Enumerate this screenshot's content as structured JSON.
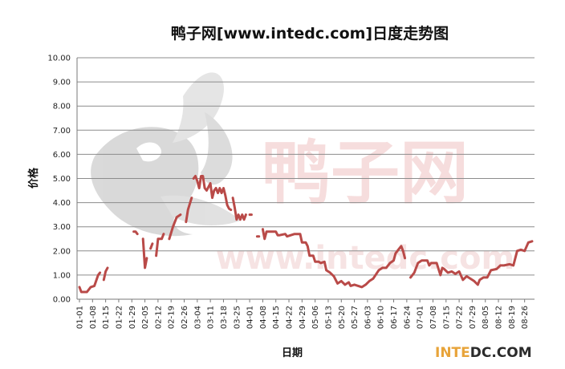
{
  "watermark": {
    "text": "鸭子网",
    "url_text": "www.intedc.com",
    "logo": "duck-logo-icon"
  },
  "brand": {
    "prefix": "INTE",
    "suffix": "DC.COM",
    "prefix_color": "#e8a43a",
    "suffix_color": "#2b2b2b"
  },
  "colors": {
    "series": "#b94a48",
    "grid": "#8c8c8c",
    "watermark": "#e8a0a0"
  },
  "chart_data": {
    "type": "line",
    "title": "鸭子网[www.intedc.com]日度走势图",
    "xlabel": "日期",
    "ylabel": "价格",
    "ylim": [
      0,
      10
    ],
    "yticks": [
      "0.00",
      "1.00",
      "2.00",
      "3.00",
      "4.00",
      "5.00",
      "6.00",
      "7.00",
      "8.00",
      "9.00",
      "10.00"
    ],
    "xticks": [
      "01-01",
      "01-08",
      "01-15",
      "01-22",
      "01-29",
      "02-05",
      "02-12",
      "02-19",
      "02-26",
      "03-04",
      "03-11",
      "03-18",
      "03-25",
      "04-01",
      "04-08",
      "04-15",
      "04-22",
      "04-29",
      "05-06",
      "05-13",
      "05-20",
      "05-27",
      "06-03",
      "06-10",
      "06-17",
      "06-24",
      "07-01",
      "07-08",
      "07-15",
      "07-22",
      "07-29",
      "08-05",
      "08-12",
      "08-19",
      "08-26"
    ],
    "grid": true,
    "legend": "none",
    "series": [
      {
        "segments": [
          [
            [
              "01-01",
              0.5
            ],
            [
              "01-02",
              0.3
            ],
            [
              "01-05",
              0.3
            ],
            [
              "01-07",
              0.5
            ],
            [
              "01-09",
              0.55
            ],
            [
              "01-11",
              1.0
            ],
            [
              "01-12",
              1.1
            ]
          ],
          [
            [
              "01-14",
              0.8
            ],
            [
              "01-15",
              1.15
            ],
            [
              "01-16",
              1.3
            ]
          ],
          [
            [
              "01-30",
              2.8
            ],
            [
              "01-31",
              2.8
            ],
            [
              "02-01",
              2.7
            ]
          ],
          [
            [
              "02-04",
              2.5
            ],
            [
              "02-05",
              1.3
            ],
            [
              "02-06",
              1.7
            ]
          ],
          [
            [
              "02-08",
              2.1
            ],
            [
              "02-09",
              2.3
            ]
          ],
          [
            [
              "02-11",
              1.8
            ],
            [
              "02-12",
              2.5
            ],
            [
              "02-14",
              2.5
            ],
            [
              "02-15",
              2.7
            ]
          ],
          [
            [
              "02-18",
              2.5
            ],
            [
              "02-20",
              3.0
            ],
            [
              "02-22",
              3.4
            ],
            [
              "02-24",
              3.5
            ]
          ],
          [
            [
              "02-27",
              3.2
            ],
            [
              "02-28",
              3.7
            ],
            [
              "03-01",
              4.2
            ]
          ],
          [
            [
              "03-02",
              5.0
            ],
            [
              "03-03",
              5.1
            ],
            [
              "03-04",
              4.9
            ],
            [
              "03-05",
              4.6
            ],
            [
              "03-06",
              5.1
            ],
            [
              "03-07",
              5.1
            ],
            [
              "03-08",
              4.6
            ],
            [
              "03-09",
              4.5
            ],
            [
              "03-11",
              4.8
            ],
            [
              "03-12",
              4.2
            ],
            [
              "03-13",
              4.5
            ],
            [
              "03-14",
              4.6
            ],
            [
              "03-15",
              4.4
            ],
            [
              "03-16",
              4.6
            ],
            [
              "03-17",
              4.4
            ],
            [
              "03-18",
              4.6
            ],
            [
              "03-19",
              4.3
            ],
            [
              "03-20",
              3.9
            ],
            [
              "03-21",
              3.75
            ],
            [
              "03-22",
              3.7
            ]
          ],
          [
            [
              "03-23",
              4.2
            ],
            [
              "03-24",
              3.8
            ],
            [
              "03-25",
              3.3
            ],
            [
              "03-26",
              3.5
            ],
            [
              "03-27",
              3.3
            ],
            [
              "03-28",
              3.5
            ],
            [
              "03-29",
              3.3
            ],
            [
              "03-30",
              3.5
            ]
          ],
          [
            [
              "04-01",
              3.5
            ],
            [
              "04-02",
              3.5
            ]
          ],
          [
            [
              "04-05",
              2.6
            ],
            [
              "04-06",
              2.6
            ]
          ],
          [
            [
              "04-08",
              2.9
            ],
            [
              "04-09",
              2.5
            ],
            [
              "04-10",
              2.8
            ],
            [
              "04-11",
              2.8
            ],
            [
              "04-15",
              2.8
            ],
            [
              "04-16",
              2.65
            ],
            [
              "04-17",
              2.65
            ],
            [
              "04-20",
              2.7
            ],
            [
              "04-21",
              2.6
            ],
            [
              "04-25",
              2.7
            ],
            [
              "04-28",
              2.7
            ],
            [
              "04-29",
              2.35
            ],
            [
              "05-01",
              2.35
            ],
            [
              "05-02",
              2.2
            ],
            [
              "05-03",
              1.8
            ],
            [
              "05-05",
              1.8
            ],
            [
              "05-06",
              1.55
            ],
            [
              "05-08",
              1.55
            ],
            [
              "05-09",
              1.5
            ],
            [
              "05-11",
              1.55
            ],
            [
              "05-12",
              1.2
            ],
            [
              "05-14",
              1.1
            ],
            [
              "05-16",
              0.95
            ],
            [
              "05-18",
              0.65
            ],
            [
              "05-20",
              0.75
            ],
            [
              "05-22",
              0.6
            ],
            [
              "05-24",
              0.7
            ],
            [
              "05-25",
              0.55
            ],
            [
              "05-27",
              0.6
            ],
            [
              "05-29",
              0.55
            ],
            [
              "05-31",
              0.5
            ],
            [
              "06-02",
              0.6
            ],
            [
              "06-04",
              0.75
            ],
            [
              "06-06",
              0.85
            ],
            [
              "06-09",
              1.2
            ],
            [
              "06-11",
              1.3
            ],
            [
              "06-13",
              1.3
            ],
            [
              "06-15",
              1.5
            ],
            [
              "06-17",
              1.6
            ],
            [
              "06-18",
              1.9
            ],
            [
              "06-19",
              2.0
            ],
            [
              "06-20",
              2.1
            ],
            [
              "06-21",
              2.2
            ],
            [
              "06-22",
              2.0
            ],
            [
              "06-23",
              1.7
            ]
          ],
          [
            [
              "06-26",
              0.9
            ],
            [
              "06-28",
              1.1
            ],
            [
              "06-30",
              1.5
            ],
            [
              "07-01",
              1.55
            ],
            [
              "07-02",
              1.6
            ],
            [
              "07-05",
              1.6
            ],
            [
              "07-06",
              1.4
            ],
            [
              "07-07",
              1.5
            ],
            [
              "07-10",
              1.5
            ],
            [
              "07-12",
              1.0
            ],
            [
              "07-13",
              1.3
            ],
            [
              "07-14",
              1.25
            ],
            [
              "07-16",
              1.1
            ],
            [
              "07-18",
              1.15
            ],
            [
              "07-20",
              1.05
            ],
            [
              "07-22",
              1.15
            ],
            [
              "07-24",
              0.8
            ],
            [
              "07-26",
              0.95
            ],
            [
              "07-28",
              0.85
            ],
            [
              "07-30",
              0.75
            ],
            [
              "08-01",
              0.6
            ],
            [
              "08-02",
              0.8
            ],
            [
              "08-04",
              0.9
            ],
            [
              "08-06",
              0.9
            ],
            [
              "08-08",
              1.2
            ],
            [
              "08-11",
              1.25
            ],
            [
              "08-13",
              1.4
            ],
            [
              "08-15",
              1.4
            ],
            [
              "08-18",
              1.45
            ],
            [
              "08-20",
              1.4
            ],
            [
              "08-22",
              2.0
            ],
            [
              "08-24",
              2.05
            ],
            [
              "08-26",
              2.0
            ],
            [
              "08-28",
              2.35
            ],
            [
              "08-30",
              2.4
            ]
          ]
        ]
      }
    ]
  }
}
